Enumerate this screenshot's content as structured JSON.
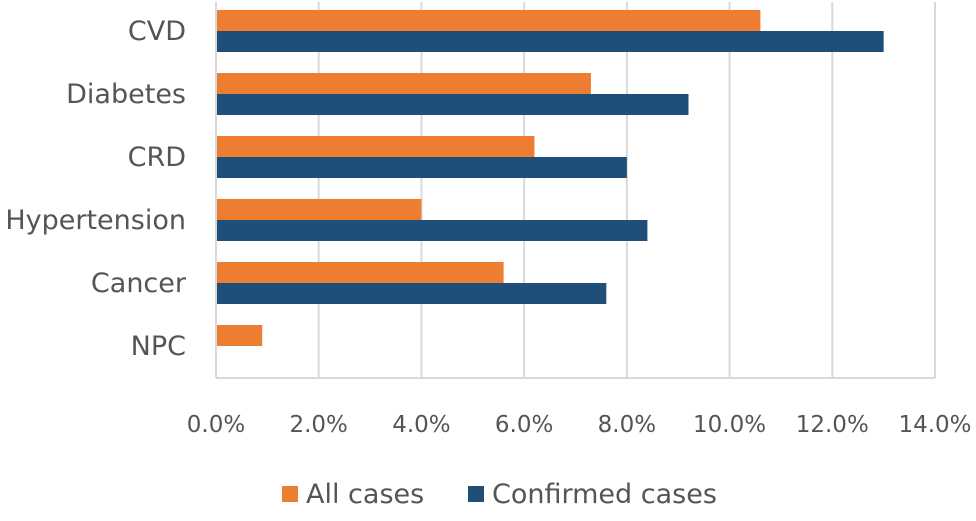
{
  "chart_data": {
    "type": "bar",
    "orientation": "horizontal",
    "categories": [
      "CVD",
      "Diabetes",
      "CRD",
      "Hypertension",
      "Cancer",
      "NPC"
    ],
    "series": [
      {
        "name": "All cases",
        "color": "#ED7D31",
        "values": [
          10.6,
          7.3,
          6.2,
          4.0,
          5.6,
          0.9
        ]
      },
      {
        "name": "Confirmed cases",
        "color": "#1F4E79",
        "values": [
          13.0,
          9.2,
          8.0,
          8.4,
          7.6,
          null
        ]
      }
    ],
    "xlim": [
      0,
      14
    ],
    "x_ticks": [
      "0.0%",
      "2.0%",
      "4.0%",
      "6.0%",
      "8.0%",
      "10.0%",
      "12.0%",
      "14.0%"
    ],
    "title": "",
    "xlabel": "",
    "ylabel": "",
    "grid": "vertical",
    "legend": "bottom",
    "gridline_color": "#D9D9D9"
  }
}
